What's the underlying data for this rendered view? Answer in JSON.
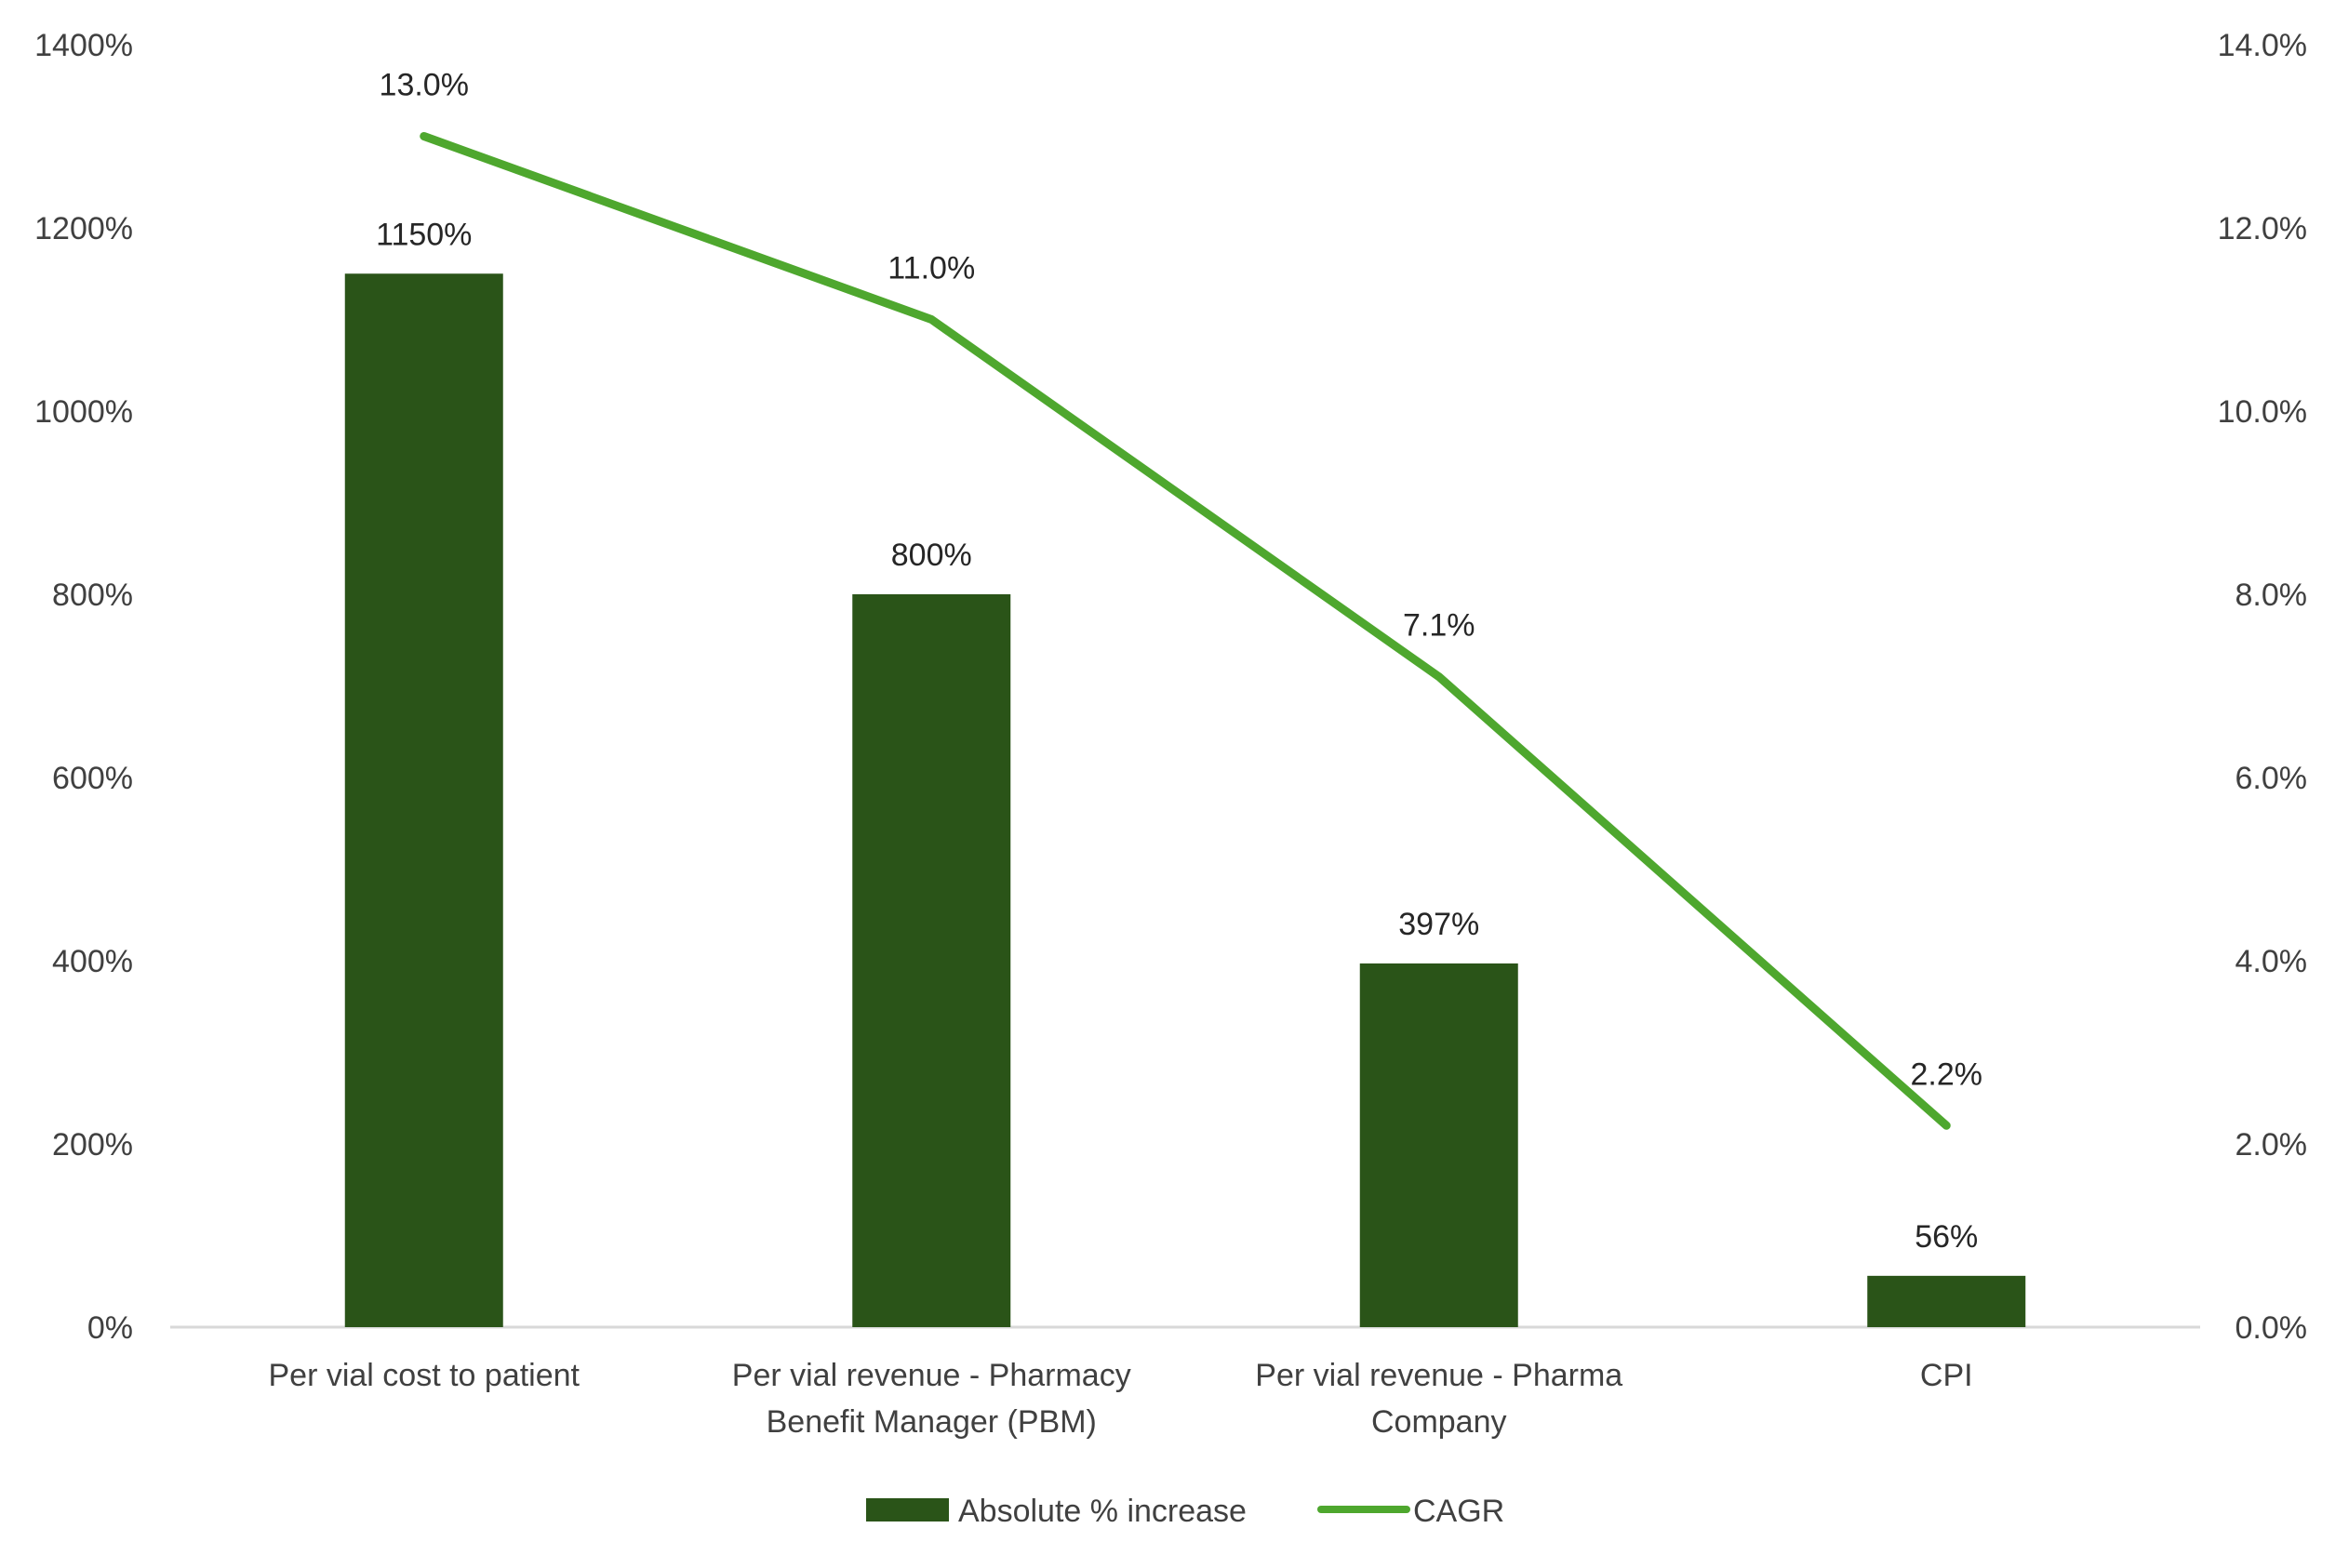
{
  "chart_data": {
    "type": "bar",
    "categories": [
      [
        "Per vial cost to patient"
      ],
      [
        "Per vial revenue - Pharmacy",
        "Benefit Manager (PBM)"
      ],
      [
        "Per vial revenue - Pharma",
        "Company"
      ],
      [
        "CPI"
      ]
    ],
    "series": [
      {
        "name": "Absolute % increase",
        "type": "bar",
        "axis": "left",
        "color": "#2a5418",
        "values": [
          1150,
          800,
          397,
          56
        ],
        "labels": [
          "1150%",
          "800%",
          "397%",
          "56%"
        ]
      },
      {
        "name": "CAGR",
        "type": "line",
        "axis": "right",
        "color": "#4ea72e",
        "values": [
          13.0,
          11.0,
          7.1,
          2.2
        ],
        "labels": [
          "13.0%",
          "11.0%",
          "7.1%",
          "2.2%"
        ]
      }
    ],
    "y_left": {
      "ylim": [
        0,
        1400
      ],
      "ticks": [
        0,
        200,
        400,
        600,
        800,
        1000,
        1200,
        1400
      ],
      "tick_labels": [
        "0%",
        "200%",
        "400%",
        "600%",
        "800%",
        "1000%",
        "1200%",
        "1400%"
      ]
    },
    "y_right": {
      "ylim": [
        0,
        14
      ],
      "ticks": [
        0,
        2,
        4,
        6,
        8,
        10,
        12,
        14
      ],
      "tick_labels": [
        "0.0%",
        "2.0%",
        "4.0%",
        "6.0%",
        "8.0%",
        "10.0%",
        "12.0%",
        "14.0%"
      ]
    },
    "grid": false,
    "legend_position": "bottom"
  }
}
